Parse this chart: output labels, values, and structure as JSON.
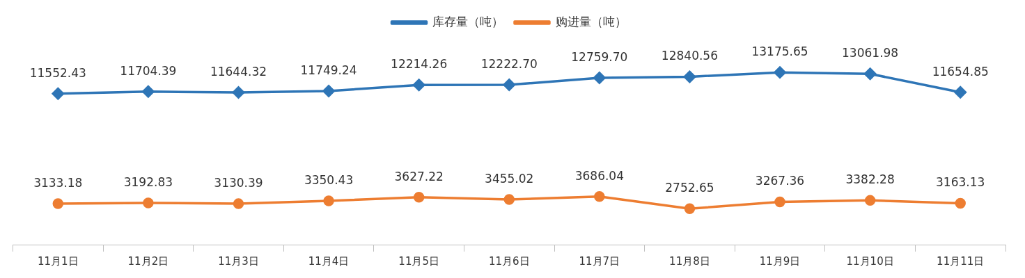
{
  "chart_data": {
    "type": "line",
    "categories": [
      "11月1日",
      "11月2日",
      "11月3日",
      "11月4日",
      "11月5日",
      "11月6日",
      "11月7日",
      "11月8日",
      "11月9日",
      "11月10日",
      "11月11日"
    ],
    "series": [
      {
        "name": "库存量（吨）",
        "color": "#2e75b6",
        "marker": "diamond",
        "values": [
          11552.43,
          11704.39,
          11644.32,
          11749.24,
          12214.26,
          12222.7,
          12759.7,
          12840.56,
          13175.65,
          13061.98,
          11654.85
        ],
        "value_labels": [
          "11552.43",
          "11704.39",
          "11644.32",
          "11749.24",
          "12214.26",
          "12222.70",
          "12759.70",
          "12840.56",
          "13175.65",
          "13061.98",
          "11654.85"
        ]
      },
      {
        "name": "购进量（吨）",
        "color": "#ed7d31",
        "marker": "circle",
        "values": [
          3133.18,
          3192.83,
          3130.39,
          3350.43,
          3627.22,
          3455.02,
          3686.04,
          2752.65,
          3267.36,
          3382.28,
          3163.13
        ],
        "value_labels": [
          "3133.18",
          "3192.83",
          "3130.39",
          "3350.43",
          "3627.22",
          "3455.02",
          "3686.04",
          "2752.65",
          "3267.36",
          "3382.28",
          "3163.13"
        ]
      }
    ],
    "legend": "top",
    "tick_labels": "x"
  }
}
